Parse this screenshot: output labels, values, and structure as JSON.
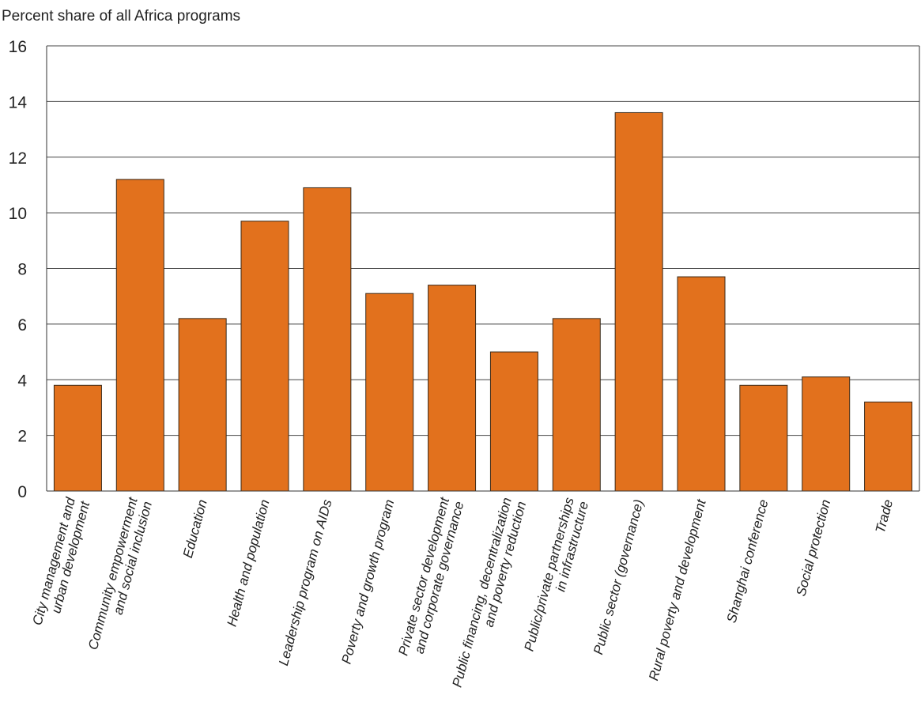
{
  "chart_data": {
    "type": "bar",
    "ylabel": "Percent share of all Africa programs",
    "ylim": [
      0,
      16
    ],
    "yticks": [
      0,
      2,
      4,
      6,
      8,
      10,
      12,
      14,
      16
    ],
    "grid": true,
    "bar_color": "#E2711D",
    "categories": [
      [
        "City management and",
        "urban development"
      ],
      [
        "Community empowerment",
        "and social inclusion"
      ],
      [
        "Education"
      ],
      [
        "Health and population"
      ],
      [
        "Leadership program on AIDs"
      ],
      [
        "Poverty and growth program"
      ],
      [
        "Private sector development",
        "and corporate governance"
      ],
      [
        "Public financing, decentralization",
        "and poverty reduction"
      ],
      [
        "Public/private partnerships",
        "in infrastructure"
      ],
      [
        "Public sector (governance)"
      ],
      [
        "Rural poverty and development"
      ],
      [
        "Shanghai conference"
      ],
      [
        "Social protection"
      ],
      [
        "Trade"
      ]
    ],
    "values": [
      3.8,
      11.2,
      6.2,
      9.7,
      10.9,
      7.1,
      7.4,
      5.0,
      6.2,
      13.6,
      7.7,
      3.8,
      4.1,
      3.2
    ]
  }
}
